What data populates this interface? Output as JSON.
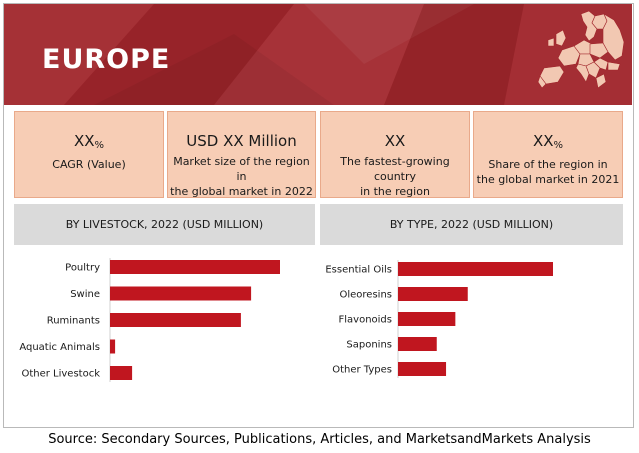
{
  "banner": {
    "title": "EUROPE"
  },
  "kpis": [
    {
      "value": "XX",
      "unit": "%",
      "line1": "CAGR (Value)",
      "line2": ""
    },
    {
      "value": "USD XX Million",
      "unit": "",
      "line1": "Market size of the region in",
      "line2": "the global market in 2022"
    },
    {
      "value": "XX",
      "unit": "",
      "line1": "The fastest-growing country",
      "line2": "in the region"
    },
    {
      "value": "XX",
      "unit": "%",
      "line1": "Share of the region in",
      "line2": "the global market  in 2021"
    }
  ],
  "colors": {
    "banner": "#a1262c",
    "bar": "#c0161f",
    "kpi_bg": "#f7cdb5",
    "panel_head": "#dadada"
  },
  "chart_data": [
    {
      "type": "bar",
      "orientation": "horizontal",
      "title": "BY LIVESTOCK, 2022 (USD MILLION)",
      "categories": [
        "Poultry",
        "Swine",
        "Ruminants",
        "Aquatic Animals",
        "Other Livestock"
      ],
      "values": [
        100,
        83,
        77,
        3,
        13
      ],
      "xlim": [
        0,
        100
      ],
      "grid": false,
      "legend": "none"
    },
    {
      "type": "bar",
      "orientation": "horizontal",
      "title": "BY TYPE, 2022 (USD MILLION)",
      "categories": [
        "Essential Oils",
        "Oleoresins",
        "Flavonoids",
        "Saponins",
        "Other Types"
      ],
      "values": [
        100,
        45,
        37,
        25,
        31
      ],
      "xlim": [
        0,
        100
      ],
      "grid": false,
      "legend": "none"
    }
  ],
  "source": "Source: Secondary Sources, Publications, Articles, and MarketsandMarkets Analysis"
}
